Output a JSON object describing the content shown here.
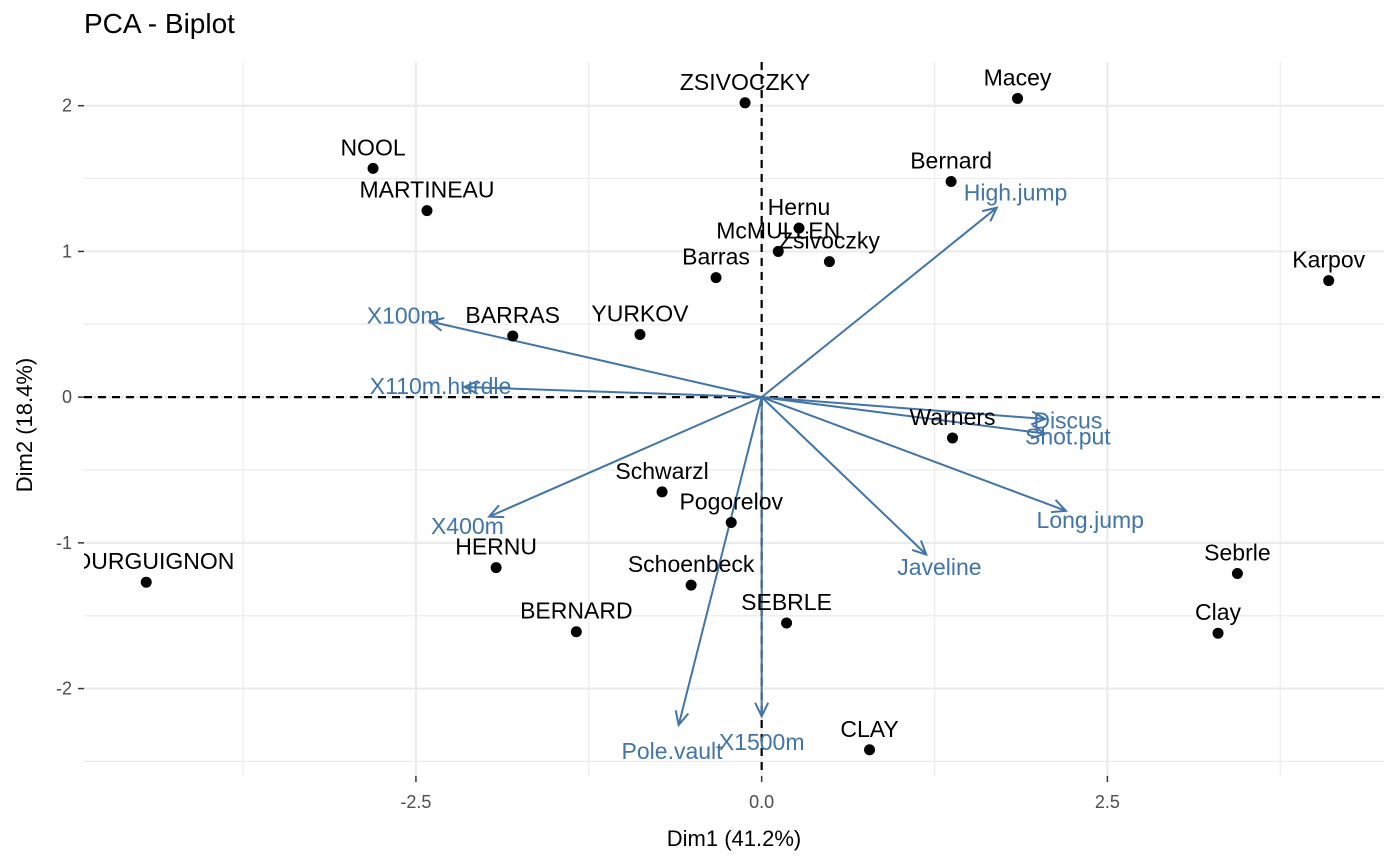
{
  "chart_data": {
    "type": "scatter",
    "title": "PCA - Biplot",
    "xlabel": "Dim1 (41.2%)",
    "ylabel": "Dim2 (18.4%)",
    "xlim": [
      -4.9,
      4.5
    ],
    "ylim": [
      -2.6,
      2.3
    ],
    "xticks": [
      -2.5,
      0.0,
      2.5
    ],
    "xtick_labels": [
      "-2.5",
      "0.0",
      "2.5"
    ],
    "yticks": [
      -2,
      -1,
      0,
      1,
      2
    ],
    "ytick_labels": [
      "-2",
      "-1",
      "0",
      "1",
      "2"
    ],
    "grid": true,
    "colors": {
      "individuals": "#000000",
      "variables": "#4174a7",
      "grid": "#ebebeb"
    },
    "individuals": [
      {
        "name": "ZSIVOCZKY",
        "x": -0.12,
        "y": 2.02
      },
      {
        "name": "Macey",
        "x": 1.85,
        "y": 2.05
      },
      {
        "name": "NOOL",
        "x": -2.81,
        "y": 1.57
      },
      {
        "name": "Bernard",
        "x": 1.37,
        "y": 1.48
      },
      {
        "name": "MARTINEAU",
        "x": -2.42,
        "y": 1.28
      },
      {
        "name": "Hernu",
        "x": 0.27,
        "y": 1.16
      },
      {
        "name": "McMULLEN",
        "x": 0.12,
        "y": 1.0
      },
      {
        "name": "Zsivoczky",
        "x": 0.49,
        "y": 0.93
      },
      {
        "name": "Barras",
        "x": -0.33,
        "y": 0.82
      },
      {
        "name": "Karpov",
        "x": 4.1,
        "y": 0.8
      },
      {
        "name": "BARRAS",
        "x": -1.8,
        "y": 0.42
      },
      {
        "name": "YURKOV",
        "x": -0.88,
        "y": 0.43
      },
      {
        "name": "Warners",
        "x": 1.38,
        "y": -0.28
      },
      {
        "name": "Schwarzl",
        "x": -0.72,
        "y": -0.65
      },
      {
        "name": "Pogorelov",
        "x": -0.22,
        "y": -0.86
      },
      {
        "name": "BOURGUIGNON",
        "x": -4.45,
        "y": -1.27
      },
      {
        "name": "HERNU",
        "x": -1.92,
        "y": -1.17
      },
      {
        "name": "Sebrle",
        "x": 3.44,
        "y": -1.21
      },
      {
        "name": "Schoenbeck",
        "x": -0.51,
        "y": -1.29
      },
      {
        "name": "BERNARD",
        "x": -1.34,
        "y": -1.61
      },
      {
        "name": "SEBRLE",
        "x": 0.18,
        "y": -1.55
      },
      {
        "name": "Clay",
        "x": 3.3,
        "y": -1.62
      },
      {
        "name": "CLAY",
        "x": 0.78,
        "y": -2.42
      }
    ],
    "variables": [
      {
        "name": "High.jump",
        "x": 1.7,
        "y": 1.3
      },
      {
        "name": "X100m",
        "x": -2.4,
        "y": 0.52
      },
      {
        "name": "X110m.hurdle",
        "x": -2.15,
        "y": 0.07
      },
      {
        "name": "Discus",
        "x": 2.05,
        "y": -0.15
      },
      {
        "name": "Shot.put",
        "x": 2.05,
        "y": -0.25
      },
      {
        "name": "Long.jump",
        "x": 2.2,
        "y": -0.78
      },
      {
        "name": "Javeline",
        "x": 1.19,
        "y": -1.08
      },
      {
        "name": "X400m",
        "x": -1.97,
        "y": -0.82
      },
      {
        "name": "Pole.vault",
        "x": -0.6,
        "y": -2.25
      },
      {
        "name": "X1500m",
        "x": 0.0,
        "y": -2.19
      }
    ]
  }
}
